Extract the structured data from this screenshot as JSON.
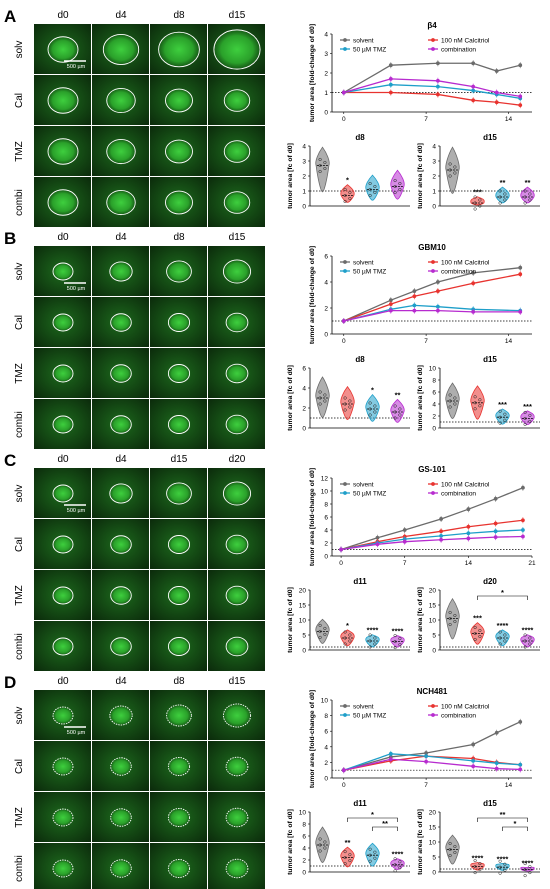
{
  "colors": {
    "solvent": "#6b6b6b",
    "calcitriol": "#e8332f",
    "tmz": "#1e9fc9",
    "combination": "#b72bcf",
    "tissue_dark": "#0b2a0b",
    "tissue_mid": "#1d6a1d",
    "tissue_bright": "#3ecf3e"
  },
  "panels": [
    {
      "letter": "A",
      "days": [
        "d0",
        "d4",
        "d8",
        "d15"
      ],
      "rows": [
        "solv",
        "Cal",
        "TMZ",
        "combi"
      ],
      "scalebar": "500 µm"
    },
    {
      "letter": "B",
      "days": [
        "d0",
        "d4",
        "d8",
        "d15"
      ],
      "rows": [
        "solv",
        "Cal",
        "TMZ",
        "combi"
      ],
      "scalebar": "500 µm"
    },
    {
      "letter": "C",
      "days": [
        "d0",
        "d4",
        "d15",
        "d20"
      ],
      "rows": [
        "solv",
        "Cal",
        "TMZ",
        "combi"
      ],
      "scalebar": "500 µm"
    },
    {
      "letter": "D",
      "days": [
        "d0",
        "d4",
        "d8",
        "d15"
      ],
      "rows": [
        "solv",
        "Cal",
        "TMZ",
        "combi"
      ],
      "scalebar": "500 µm"
    }
  ],
  "chart_data": [
    {
      "type": "line",
      "title": "β4",
      "ylabel": "tumor area [fold-change of d0]",
      "x_ticks": [
        "0",
        "7",
        "14"
      ],
      "xlim": [
        -1,
        16
      ],
      "ylim": [
        0,
        4
      ],
      "y_ticks": [
        "0",
        "1",
        "2",
        "3",
        "4"
      ],
      "ref_line": 1,
      "legend": [
        "solvent",
        "100 nM Calcitriol",
        "50 µM TMZ",
        "combination"
      ],
      "series": [
        {
          "name": "solvent",
          "x": [
            0,
            4,
            8,
            11,
            13,
            15
          ],
          "y": [
            1,
            2.4,
            2.5,
            2.5,
            2.1,
            2.4
          ]
        },
        {
          "name": "100 nM Calcitriol",
          "x": [
            0,
            4,
            8,
            11,
            13,
            15
          ],
          "y": [
            1,
            1.0,
            0.9,
            0.6,
            0.5,
            0.35
          ]
        },
        {
          "name": "50 µM TMZ",
          "x": [
            0,
            4,
            8,
            11,
            13,
            15
          ],
          "y": [
            1,
            1.4,
            1.3,
            1.1,
            0.9,
            0.7
          ]
        },
        {
          "name": "combination",
          "x": [
            0,
            4,
            8,
            11,
            13,
            15
          ],
          "y": [
            1,
            1.7,
            1.6,
            1.3,
            1.0,
            0.8
          ]
        }
      ]
    },
    {
      "type": "violin",
      "title": "d8",
      "ylabel": "tumor area [fc of d0]",
      "ylim": [
        0,
        4
      ],
      "y_ticks": [
        "0",
        "1",
        "2",
        "3",
        "4"
      ],
      "ref_line": 1,
      "groups": [
        {
          "name": "solvent",
          "median": 2.7
        },
        {
          "name": "100 nM Calcitriol",
          "median": 0.7,
          "sig": "*"
        },
        {
          "name": "50 µM TMZ",
          "median": 1.1
        },
        {
          "name": "combination",
          "median": 1.3
        }
      ]
    },
    {
      "type": "violin",
      "title": "d15",
      "ylabel": "tumor area [fc of d0]",
      "ylim": [
        0,
        4
      ],
      "y_ticks": [
        "0",
        "1",
        "2",
        "3",
        "4"
      ],
      "ref_line": 1,
      "groups": [
        {
          "name": "solvent",
          "median": 2.4
        },
        {
          "name": "100 nM Calcitriol",
          "median": 0.2,
          "sig": "***"
        },
        {
          "name": "50 µM TMZ",
          "median": 0.6,
          "sig": "**"
        },
        {
          "name": "combination",
          "median": 0.6,
          "sig": "**"
        }
      ]
    },
    {
      "type": "line",
      "title": "GBM10",
      "ylabel": "tumor area [fold-change of d0]",
      "x_ticks": [
        "0",
        "7",
        "14"
      ],
      "xlim": [
        -1,
        16
      ],
      "ylim": [
        0,
        6
      ],
      "y_ticks": [
        "0",
        "2",
        "4",
        "6"
      ],
      "ref_line": 1,
      "legend": [
        "solvent",
        "100 nM Calcitriol",
        "50 µM TMZ",
        "combination"
      ],
      "series": [
        {
          "name": "solvent",
          "x": [
            0,
            4,
            6,
            8,
            11,
            15
          ],
          "y": [
            1,
            2.6,
            3.3,
            4.0,
            4.7,
            5.1
          ]
        },
        {
          "name": "100 nM Calcitriol",
          "x": [
            0,
            4,
            6,
            8,
            11,
            15
          ],
          "y": [
            1,
            2.3,
            2.9,
            3.3,
            3.9,
            4.6
          ]
        },
        {
          "name": "50 µM TMZ",
          "x": [
            0,
            4,
            6,
            8,
            11,
            15
          ],
          "y": [
            1,
            1.9,
            2.2,
            2.1,
            1.9,
            1.8
          ]
        },
        {
          "name": "combination",
          "x": [
            0,
            4,
            6,
            8,
            11,
            15
          ],
          "y": [
            1,
            1.8,
            1.8,
            1.8,
            1.7,
            1.7
          ]
        }
      ]
    },
    {
      "type": "violin",
      "title": "d8",
      "ylabel": "tumor area [fc of d0]",
      "ylim": [
        0,
        6
      ],
      "y_ticks": [
        "0",
        "2",
        "4",
        "6"
      ],
      "ref_line": 1,
      "groups": [
        {
          "name": "solvent",
          "median": 3.0
        },
        {
          "name": "100 nM Calcitriol",
          "median": 2.4
        },
        {
          "name": "50 µM TMZ",
          "median": 1.9,
          "sig": "*"
        },
        {
          "name": "combination",
          "median": 1.6,
          "sig": "**"
        }
      ]
    },
    {
      "type": "violin",
      "title": "d15",
      "ylabel": "tumor area [fc of d0]",
      "ylim": [
        0,
        10
      ],
      "y_ticks": [
        "0",
        "2",
        "4",
        "6",
        "8",
        "10"
      ],
      "ref_line": 1,
      "groups": [
        {
          "name": "solvent",
          "median": 4.5
        },
        {
          "name": "100 nM Calcitriol",
          "median": 4.2
        },
        {
          "name": "50 µM TMZ",
          "median": 1.8,
          "sig": "***"
        },
        {
          "name": "combination",
          "median": 1.6,
          "sig": "***"
        }
      ]
    },
    {
      "type": "line",
      "title": "GS-101",
      "ylabel": "tumor area [fold-change of d0]",
      "x_ticks": [
        "0",
        "7",
        "14",
        "21"
      ],
      "xlim": [
        -1,
        21
      ],
      "ylim": [
        0,
        12
      ],
      "y_ticks": [
        "0",
        "2",
        "4",
        "6",
        "8",
        "10",
        "12"
      ],
      "ref_line": 1,
      "legend": [
        "solvent",
        "100 nM Calcitriol",
        "50 µM TMZ",
        "combination"
      ],
      "series": [
        {
          "name": "solvent",
          "x": [
            0,
            4,
            7,
            11,
            14,
            17,
            20
          ],
          "y": [
            1,
            2.8,
            4.0,
            5.7,
            7.2,
            8.8,
            10.5
          ]
        },
        {
          "name": "100 nM Calcitriol",
          "x": [
            0,
            4,
            7,
            11,
            14,
            17,
            20
          ],
          "y": [
            1,
            2.2,
            3.0,
            3.8,
            4.5,
            5.0,
            5.5
          ]
        },
        {
          "name": "50 µM TMZ",
          "x": [
            0,
            4,
            7,
            11,
            14,
            17,
            20
          ],
          "y": [
            1,
            2.0,
            2.6,
            3.1,
            3.5,
            3.8,
            4.0
          ]
        },
        {
          "name": "combination",
          "x": [
            0,
            4,
            7,
            11,
            14,
            17,
            20
          ],
          "y": [
            1,
            1.8,
            2.2,
            2.5,
            2.7,
            2.9,
            3.0
          ]
        }
      ]
    },
    {
      "type": "violin",
      "title": "d11",
      "ylabel": "tumor area [fc of d0]",
      "ylim": [
        0,
        20
      ],
      "y_ticks": [
        "0",
        "5",
        "10",
        "15",
        "20"
      ],
      "ref_line": 1,
      "groups": [
        {
          "name": "solvent",
          "median": 6.2
        },
        {
          "name": "100 nM Calcitriol",
          "median": 4.0,
          "sig": "*"
        },
        {
          "name": "50 µM TMZ",
          "median": 3.0,
          "sig": "****"
        },
        {
          "name": "combination",
          "median": 2.8,
          "sig": "****"
        }
      ]
    },
    {
      "type": "violin",
      "title": "d20",
      "ylabel": "tumor area [fc of d0]",
      "ylim": [
        0,
        20
      ],
      "y_ticks": [
        "0",
        "5",
        "10",
        "15",
        "20"
      ],
      "ref_line": 1,
      "bracket": {
        "from": 1,
        "to": 3,
        "label": "*"
      },
      "groups": [
        {
          "name": "solvent",
          "median": 10.5
        },
        {
          "name": "100 nM Calcitriol",
          "median": 5.5,
          "sig": "***"
        },
        {
          "name": "50 µM TMZ",
          "median": 4.0,
          "sig": "****"
        },
        {
          "name": "combination",
          "median": 3.0,
          "sig": "****"
        }
      ]
    },
    {
      "type": "line",
      "title": "NCH481",
      "ylabel": "tumor area [fold-change of d0]",
      "x_ticks": [
        "0",
        "7",
        "14"
      ],
      "xlim": [
        -1,
        16
      ],
      "ylim": [
        0,
        10
      ],
      "y_ticks": [
        "0",
        "2",
        "4",
        "6",
        "8",
        "10"
      ],
      "ref_line": 1,
      "legend": [
        "solvent",
        "100 nM Calcitriol",
        "50 µM TMZ",
        "combination"
      ],
      "series": [
        {
          "name": "solvent",
          "x": [
            0,
            4,
            7,
            11,
            13,
            15
          ],
          "y": [
            1,
            2.7,
            3.2,
            4.3,
            5.8,
            7.2
          ]
        },
        {
          "name": "100 nM Calcitriol",
          "x": [
            0,
            4,
            7,
            11,
            13,
            15
          ],
          "y": [
            1,
            2.2,
            2.8,
            2.5,
            2.0,
            1.7
          ]
        },
        {
          "name": "50 µM TMZ",
          "x": [
            0,
            4,
            7,
            11,
            13,
            15
          ],
          "y": [
            1,
            3.1,
            2.8,
            2.2,
            1.9,
            1.7
          ]
        },
        {
          "name": "combination",
          "x": [
            0,
            4,
            7,
            11,
            13,
            15
          ],
          "y": [
            1,
            2.4,
            2.1,
            1.5,
            1.2,
            1.1
          ]
        }
      ]
    },
    {
      "type": "violin",
      "title": "d11",
      "ylabel": "tumor area [fc of d0]",
      "ylim": [
        0,
        10
      ],
      "y_ticks": [
        "0",
        "2",
        "4",
        "6",
        "8",
        "10"
      ],
      "ref_line": 1,
      "brackets": [
        {
          "from": 1,
          "to": 3,
          "label": "*"
        },
        {
          "from": 2,
          "to": 3,
          "label": "**"
        }
      ],
      "groups": [
        {
          "name": "solvent",
          "median": 4.5
        },
        {
          "name": "100 nM Calcitriol",
          "median": 2.4,
          "sig": "**"
        },
        {
          "name": "50 µM TMZ",
          "median": 2.8
        },
        {
          "name": "combination",
          "median": 1.2,
          "sig": "****"
        }
      ]
    },
    {
      "type": "violin",
      "title": "d15",
      "ylabel": "tumor area [fc of d0]",
      "ylim": [
        0,
        20
      ],
      "y_ticks": [
        "0",
        "5",
        "10",
        "15",
        "20"
      ],
      "ref_line": 1,
      "brackets": [
        {
          "from": 1,
          "to": 3,
          "label": "**"
        },
        {
          "from": 2,
          "to": 3,
          "label": "*"
        }
      ],
      "groups": [
        {
          "name": "solvent",
          "median": 7.5
        },
        {
          "name": "100 nM Calcitriol",
          "median": 1.8,
          "sig": "****"
        },
        {
          "name": "50 µM TMZ",
          "median": 1.6,
          "sig": "****"
        },
        {
          "name": "combination",
          "median": 0.8,
          "sig": "****"
        }
      ]
    }
  ]
}
